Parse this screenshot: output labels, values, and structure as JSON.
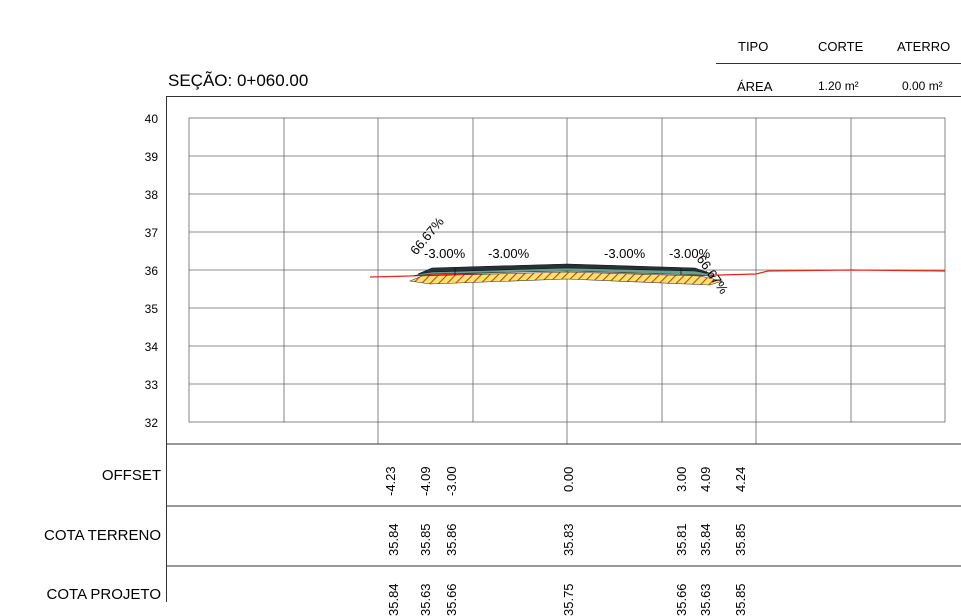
{
  "header": {
    "section_label": "SEÇÃO: 0+060.00",
    "table": {
      "col_tipo": "TIPO",
      "col_corte": "CORTE",
      "col_aterro": "ATERRO",
      "row_label": "ÁREA",
      "corte_value": "1.20 m²",
      "aterro_value": "0.00 m²"
    }
  },
  "axis": {
    "y_ticks": [
      "40",
      "39",
      "38",
      "37",
      "36",
      "35",
      "34",
      "33",
      "32"
    ],
    "ylim": [
      32,
      40
    ]
  },
  "slopes": {
    "left_outer_a": "66.67%",
    "left_outer_b": "-3.00%",
    "left_lane": "-3.00%",
    "right_lane": "-3.00%",
    "right_outer_a": "-3.00%",
    "right_outer_b": "66.67%"
  },
  "rows": {
    "offset_label": "OFFSET",
    "cota_terreno_label": "COTA TERRENO",
    "cota_projeto_label": "COTA PROJETO",
    "offset_values": [
      "-4.23",
      "-4.09",
      "-3.00",
      "0.00",
      "3.00",
      "4.09",
      "4.24"
    ],
    "terreno_values": [
      "35.84",
      "35.85",
      "35.86",
      "35.83",
      "35.81",
      "35.84",
      "35.85"
    ],
    "projeto_values": [
      "35.84",
      "35.63",
      "35.66",
      "35.75",
      "35.66",
      "35.63",
      "35.85"
    ]
  },
  "colors": {
    "terrain_line": "#e8231c",
    "pavement": "#263238",
    "base_layer": "#6a9e8e",
    "subbase": "#f5e66a",
    "hatch": "#d43a2a",
    "grid": "#555555"
  }
}
